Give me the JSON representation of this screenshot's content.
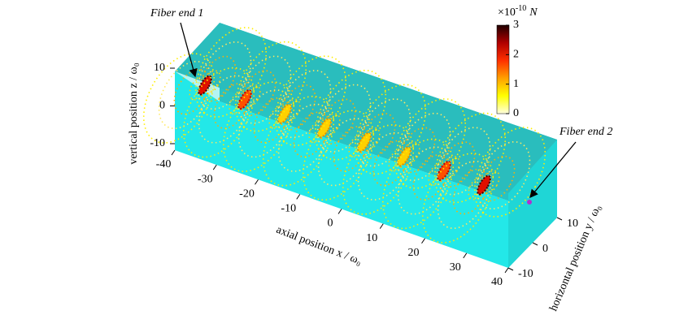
{
  "chart_data": {
    "type": "3d-field",
    "annotations": [
      "Fiber end 1",
      "Fiber end 2"
    ],
    "xlabel": "axial position x / ω₀",
    "ylabel": "horizontal position y / ω₀",
    "zlabel": "vertical position z / ω₀",
    "xlim": [
      -40,
      40
    ],
    "xticks": [
      -40,
      -30,
      -20,
      -10,
      0,
      10,
      20,
      30,
      40
    ],
    "ylim": [
      -10,
      10
    ],
    "yticks": [
      -10,
      0,
      10
    ],
    "zlim": [
      -10,
      10
    ],
    "zticks": [
      -10,
      0,
      10
    ],
    "colorbar": {
      "clim": [
        0,
        3
      ],
      "ticks": [
        0,
        1,
        2,
        3
      ],
      "multiplier": "×10",
      "exponent": "-10",
      "unit": "N",
      "colors": [
        "#ffffe0",
        "#ffff00",
        "#ffa000",
        "#ff3000",
        "#b00000",
        "#200000"
      ]
    }
  }
}
